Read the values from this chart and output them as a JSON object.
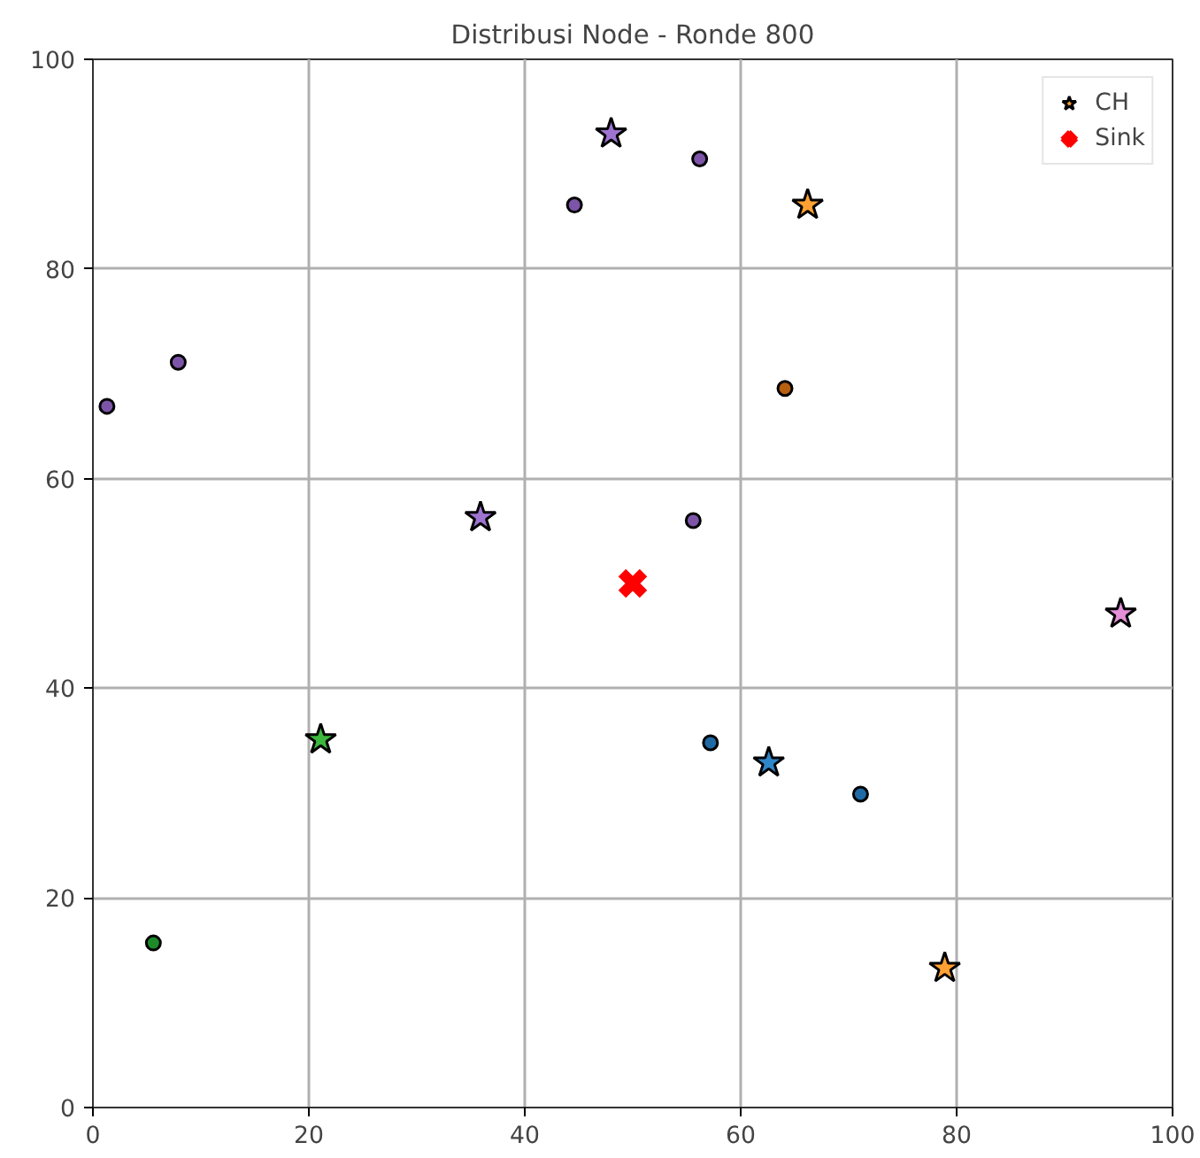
{
  "chart_data": {
    "type": "scatter",
    "title": "Distribusi Node - Ronde 800",
    "xlim": [
      0,
      100
    ],
    "ylim": [
      0,
      100
    ],
    "xticks": [
      0,
      20,
      40,
      60,
      80,
      100
    ],
    "yticks": [
      0,
      20,
      40,
      60,
      80,
      100
    ],
    "grid": true,
    "legend": "top right",
    "series": [
      {
        "marker": "circle",
        "x": [
          44.6,
          56.2,
          7.9,
          1.3,
          64.1,
          55.6,
          57.2,
          71.1,
          5.6
        ],
        "values": [
          86.1,
          90.5,
          71.1,
          66.9,
          68.6,
          56.0,
          34.8,
          29.9,
          15.7
        ],
        "colors": [
          "#7d55a8",
          "#7d55a8",
          "#7d55a8",
          "#7d55a8",
          "#b85f10",
          "#7d55a8",
          "#1f6aa5",
          "#1f6aa5",
          "#1f8a2a"
        ]
      },
      {
        "name": "CH",
        "marker": "star",
        "x": [
          66.2,
          48.0,
          35.9,
          95.2,
          21.1,
          62.6,
          78.9
        ],
        "values": [
          86.1,
          92.9,
          56.3,
          47.1,
          35.1,
          32.9,
          13.3
        ],
        "colors": [
          "#ffa033",
          "#9f74d0",
          "#9f74d0",
          "#e58fd8",
          "#3cb83c",
          "#2f86c8",
          "#ffa033"
        ]
      },
      {
        "name": "Sink",
        "marker": "cross",
        "x": [
          50
        ],
        "values": [
          50
        ],
        "color": "#ff0000"
      }
    ]
  }
}
